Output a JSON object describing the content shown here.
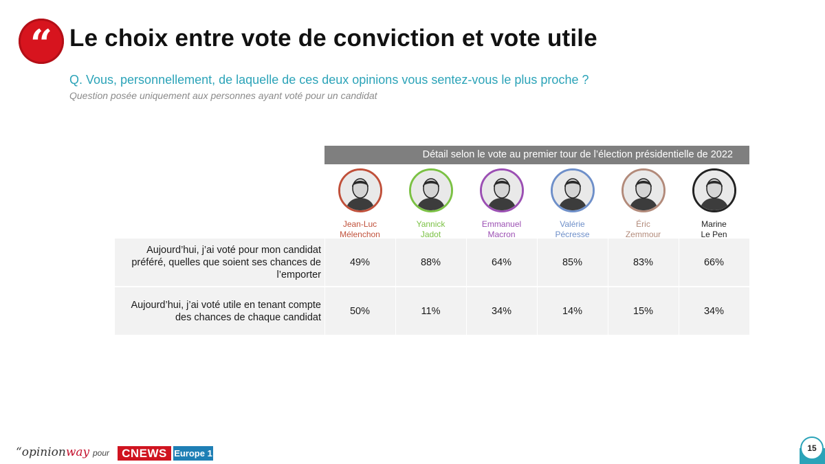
{
  "title": "Le choix entre vote de conviction et vote utile",
  "question": "Q. Vous, personnellement, de laquelle de ces deux opinions vous sentez-vous le plus proche ?",
  "note": "Question posée uniquement aux personnes ayant voté pour un candidat",
  "detail_header": "Détail selon le vote au premier tour de l’élection présidentielle de 2022",
  "candidates": [
    {
      "first": "Jean-Luc",
      "last": "Mélenchon",
      "color": "#c0503a"
    },
    {
      "first": "Yannick",
      "last": "Jadot",
      "color": "#7bc144"
    },
    {
      "first": "Emmanuel",
      "last": "Macron",
      "color": "#9b4fb3"
    },
    {
      "first": "Valérie",
      "last": "Pécresse",
      "color": "#6e8fc9"
    },
    {
      "first": "Éric",
      "last": "Zemmour",
      "color": "#b28a7a"
    },
    {
      "first": "Marine",
      "last": "Le Pen",
      "color": "#222222"
    }
  ],
  "rows": [
    {
      "label": "Aujourd’hui, j’ai voté pour mon candidat préféré, quelles que soient ses chances de l’emporter",
      "values": [
        "49%",
        "88%",
        "64%",
        "85%",
        "83%",
        "66%"
      ]
    },
    {
      "label": "Aujourd’hui, j’ai voté utile en tenant compte des chances de chaque candidat",
      "values": [
        "50%",
        "11%",
        "34%",
        "14%",
        "15%",
        "34%"
      ]
    }
  ],
  "footer": {
    "brand_quote": "“",
    "brand_a": "opinion",
    "brand_b": "way",
    "pour": "pour",
    "cnews": "CNEWS",
    "europe1": "Europe 1",
    "page": "15"
  },
  "colors": {
    "accent_red": "#d7141e",
    "accent_teal": "#2ba3b8",
    "header_gray": "#7f7f7f",
    "row_bg": "#f2f2f2"
  }
}
